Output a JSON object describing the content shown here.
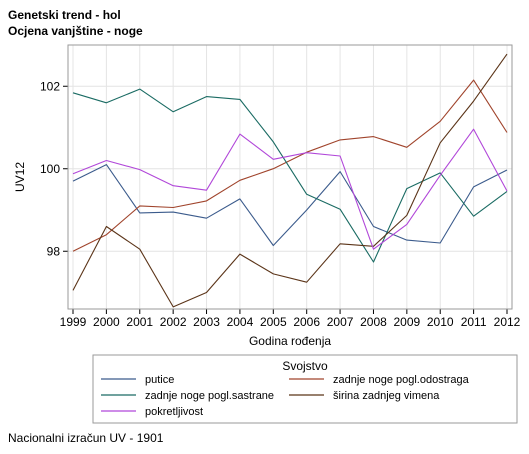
{
  "chart_data": {
    "type": "line",
    "title": "Genetski trend - hol",
    "subtitle": "Ocjena vanjštine - noge",
    "xlabel": "Godina rođenja",
    "ylabel": "UV12",
    "x": [
      "1999",
      "2000",
      "2001",
      "2002",
      "2003",
      "2004",
      "2005",
      "2006",
      "2007",
      "2008",
      "2009",
      "2010",
      "2011",
      "2012"
    ],
    "yticks": [
      98,
      100,
      102
    ],
    "ylim": [
      96.6,
      103.0
    ],
    "grid": true,
    "legend_title": "Svojstvo",
    "legend_placement": "bottom",
    "series": [
      {
        "name": "putice",
        "color": "#3b5b8c",
        "values": [
          99.7,
          100.1,
          98.93,
          98.95,
          98.8,
          99.27,
          98.14,
          99.0,
          99.93,
          98.6,
          98.27,
          98.2,
          99.56,
          99.97
        ]
      },
      {
        "name": "zadnje noge pogl.odostraga",
        "color": "#a0442c",
        "values": [
          98.0,
          98.4,
          99.1,
          99.06,
          99.22,
          99.72,
          100.0,
          100.4,
          100.7,
          100.78,
          100.52,
          101.15,
          102.15,
          100.88
        ]
      },
      {
        "name": "zadnje noge pogl.sastrane",
        "color": "#1a6b63",
        "values": [
          101.84,
          101.6,
          101.93,
          101.38,
          101.75,
          101.68,
          100.65,
          99.38,
          99.02,
          97.74,
          99.52,
          99.9,
          98.85,
          99.45
        ]
      },
      {
        "name": "širina zadnjeg vimena",
        "color": "#5b3418",
        "values": [
          97.05,
          98.6,
          98.05,
          96.65,
          97.0,
          97.93,
          97.45,
          97.25,
          98.18,
          98.12,
          98.87,
          100.63,
          101.64,
          102.78
        ]
      },
      {
        "name": "pokretljivost",
        "color": "#b147d9",
        "values": [
          99.88,
          100.2,
          99.98,
          99.59,
          99.48,
          100.84,
          100.23,
          100.39,
          100.31,
          98.05,
          98.65,
          99.84,
          100.96,
          99.46
        ]
      }
    ]
  },
  "footnote": "Nacionalni izračun UV - 1901"
}
